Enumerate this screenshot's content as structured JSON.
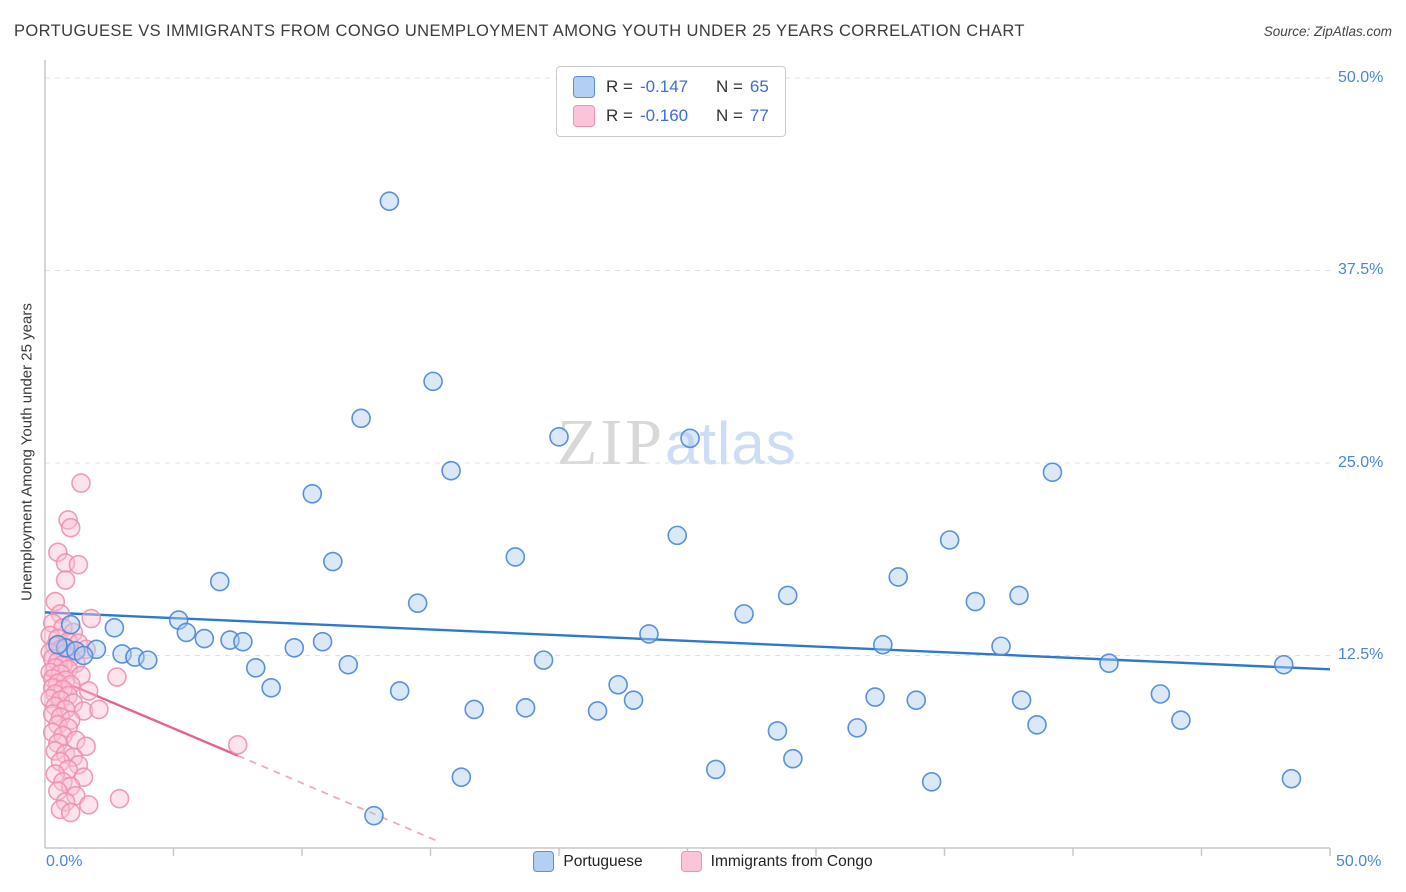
{
  "header": {
    "title": "PORTUGUESE VS IMMIGRANTS FROM CONGO UNEMPLOYMENT AMONG YOUTH UNDER 25 YEARS CORRELATION CHART",
    "source": "Source: ZipAtlas.com"
  },
  "correlation_legend": {
    "rows": [
      {
        "series": "Portuguese",
        "r_label": "R =",
        "r_value": "-0.147",
        "n_label": "N =",
        "n_value": "65"
      },
      {
        "series": "Immigrants from Congo",
        "r_label": "R =",
        "r_value": "-0.160",
        "n_label": "N =",
        "n_value": "77"
      }
    ]
  },
  "watermark": {
    "part1": "ZIP",
    "part2": "atlas"
  },
  "axes": {
    "y_axis_title": "Unemployment Among Youth under 25 years",
    "y_tick_labels": [
      "50.0%",
      "37.5%",
      "25.0%",
      "12.5%"
    ],
    "x_min_label": "0.0%",
    "x_max_label": "50.0%"
  },
  "bottom_legend": {
    "items": [
      {
        "label": "Portuguese"
      },
      {
        "label": "Immigrants from Congo"
      }
    ]
  },
  "colors": {
    "blue_fill": "#aecbf0",
    "blue_stroke": "#4a86d8",
    "blue_trend": "#2f78d2",
    "pink_fill": "#fbc0d5",
    "pink_stroke": "#f090b0",
    "pink_trend": "#e8638c",
    "pink_trend_dash": "#eeaabf",
    "axis": "#c9c9c9",
    "grid": "#e0e0e0",
    "tick_text": "#4a86d8"
  },
  "chart_data": {
    "type": "scatter",
    "title": "PORTUGUESE VS IMMIGRANTS FROM CONGO UNEMPLOYMENT AMONG YOUTH UNDER 25 YEARS CORRELATION CHART",
    "xlabel": "",
    "ylabel": "Unemployment Among Youth under 25 years",
    "xlim": [
      0,
      50
    ],
    "ylim": [
      0,
      50
    ],
    "grid": true,
    "y_gridlines": [
      12.5,
      25,
      37.5,
      50
    ],
    "x_ticks": [
      5,
      10,
      15,
      20,
      25,
      30,
      35,
      40,
      45,
      50
    ],
    "legend_position": "bottom-center",
    "series": [
      {
        "name": "Portuguese",
        "R": -0.147,
        "N": 65,
        "points": [
          [
            13.4,
            42.0
          ],
          [
            15.1,
            30.3
          ],
          [
            12.3,
            27.9
          ],
          [
            20.0,
            26.7
          ],
          [
            25.1,
            26.6
          ],
          [
            15.8,
            24.5
          ],
          [
            39.2,
            24.4
          ],
          [
            10.4,
            23.0
          ],
          [
            24.6,
            20.3
          ],
          [
            35.2,
            20.0
          ],
          [
            18.3,
            18.9
          ],
          [
            11.2,
            18.6
          ],
          [
            33.2,
            17.6
          ],
          [
            6.8,
            17.3
          ],
          [
            28.9,
            16.4
          ],
          [
            37.9,
            16.4
          ],
          [
            36.2,
            16.0
          ],
          [
            14.5,
            15.9
          ],
          [
            27.2,
            15.2
          ],
          [
            5.2,
            14.8
          ],
          [
            2.7,
            14.3
          ],
          [
            1.0,
            14.5
          ],
          [
            5.5,
            14.0
          ],
          [
            6.2,
            13.6
          ],
          [
            7.2,
            13.5
          ],
          [
            7.7,
            13.4
          ],
          [
            10.8,
            13.4
          ],
          [
            23.5,
            13.9
          ],
          [
            32.6,
            13.2
          ],
          [
            37.2,
            13.1
          ],
          [
            9.7,
            13.0
          ],
          [
            0.8,
            13.0
          ],
          [
            1.2,
            12.8
          ],
          [
            2.0,
            12.9
          ],
          [
            19.4,
            12.2
          ],
          [
            41.4,
            12.0
          ],
          [
            48.2,
            11.9
          ],
          [
            11.8,
            11.9
          ],
          [
            8.2,
            11.7
          ],
          [
            0.5,
            13.2
          ],
          [
            1.5,
            12.5
          ],
          [
            3.0,
            12.6
          ],
          [
            3.5,
            12.4
          ],
          [
            4.0,
            12.2
          ],
          [
            8.8,
            10.4
          ],
          [
            13.8,
            10.2
          ],
          [
            22.3,
            10.6
          ],
          [
            18.7,
            9.1
          ],
          [
            22.9,
            9.6
          ],
          [
            21.5,
            8.9
          ],
          [
            32.3,
            9.8
          ],
          [
            33.9,
            9.6
          ],
          [
            38.0,
            9.6
          ],
          [
            43.4,
            10.0
          ],
          [
            16.7,
            9.0
          ],
          [
            31.6,
            7.8
          ],
          [
            28.5,
            7.6
          ],
          [
            38.6,
            8.0
          ],
          [
            44.2,
            8.3
          ],
          [
            29.1,
            5.8
          ],
          [
            26.1,
            5.1
          ],
          [
            16.2,
            4.6
          ],
          [
            34.5,
            4.3
          ],
          [
            48.5,
            4.5
          ],
          [
            12.8,
            2.1
          ]
        ],
        "trend": {
          "x1": 0,
          "y1": 15.3,
          "x2": 50,
          "y2": 11.6
        }
      },
      {
        "name": "Immigrants from Congo",
        "R": -0.16,
        "N": 77,
        "points": [
          [
            1.4,
            23.7
          ],
          [
            0.9,
            21.3
          ],
          [
            1.0,
            20.8
          ],
          [
            0.5,
            19.2
          ],
          [
            0.8,
            18.5
          ],
          [
            1.3,
            18.4
          ],
          [
            0.8,
            17.4
          ],
          [
            0.4,
            16.0
          ],
          [
            0.6,
            15.2
          ],
          [
            1.8,
            14.9
          ],
          [
            0.3,
            14.6
          ],
          [
            0.7,
            14.3
          ],
          [
            1.1,
            14.0
          ],
          [
            0.2,
            13.8
          ],
          [
            0.5,
            13.6
          ],
          [
            0.9,
            13.4
          ],
          [
            1.3,
            13.3
          ],
          [
            0.4,
            13.1
          ],
          [
            0.6,
            12.9
          ],
          [
            1.6,
            12.9
          ],
          [
            0.2,
            12.7
          ],
          [
            0.8,
            12.6
          ],
          [
            1.0,
            12.4
          ],
          [
            0.3,
            12.3
          ],
          [
            0.5,
            12.1
          ],
          [
            1.2,
            12.0
          ],
          [
            0.7,
            11.9
          ],
          [
            0.4,
            11.7
          ],
          [
            0.9,
            11.6
          ],
          [
            0.2,
            11.4
          ],
          [
            0.6,
            11.3
          ],
          [
            1.4,
            11.2
          ],
          [
            2.8,
            11.1
          ],
          [
            0.3,
            11.0
          ],
          [
            0.8,
            10.9
          ],
          [
            0.5,
            10.7
          ],
          [
            1.0,
            10.6
          ],
          [
            0.3,
            10.4
          ],
          [
            0.7,
            10.3
          ],
          [
            1.7,
            10.2
          ],
          [
            0.4,
            10.0
          ],
          [
            0.9,
            9.9
          ],
          [
            0.2,
            9.7
          ],
          [
            0.6,
            9.6
          ],
          [
            1.1,
            9.4
          ],
          [
            0.4,
            9.2
          ],
          [
            0.8,
            9.0
          ],
          [
            1.5,
            8.9
          ],
          [
            0.3,
            8.7
          ],
          [
            0.6,
            8.5
          ],
          [
            1.0,
            8.3
          ],
          [
            2.1,
            9.0
          ],
          [
            0.5,
            8.0
          ],
          [
            0.9,
            7.8
          ],
          [
            0.3,
            7.5
          ],
          [
            0.7,
            7.3
          ],
          [
            1.2,
            7.0
          ],
          [
            0.5,
            6.8
          ],
          [
            1.6,
            6.6
          ],
          [
            7.5,
            6.7
          ],
          [
            0.4,
            6.3
          ],
          [
            0.8,
            6.1
          ],
          [
            1.1,
            5.9
          ],
          [
            0.6,
            5.6
          ],
          [
            1.3,
            5.4
          ],
          [
            0.9,
            5.1
          ],
          [
            0.4,
            4.8
          ],
          [
            1.5,
            4.6
          ],
          [
            0.7,
            4.3
          ],
          [
            1.0,
            4.0
          ],
          [
            0.5,
            3.7
          ],
          [
            1.2,
            3.4
          ],
          [
            0.8,
            3.0
          ],
          [
            1.7,
            2.8
          ],
          [
            0.6,
            2.5
          ],
          [
            1.0,
            2.3
          ],
          [
            2.9,
            3.2
          ]
        ],
        "trend": {
          "x1": 0,
          "y1": 11.3,
          "x2": 7.5,
          "y2": 6.0,
          "dash_to": [
            15.2,
            0.5
          ]
        }
      }
    ]
  }
}
